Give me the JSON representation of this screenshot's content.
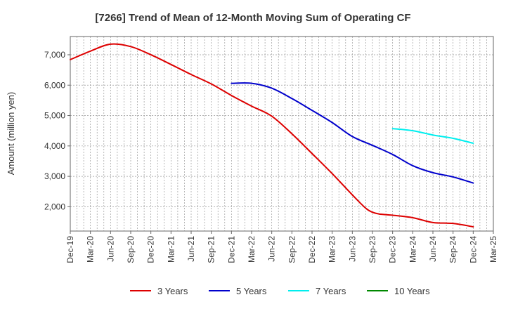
{
  "chart_data": {
    "type": "line",
    "title": "[7266]  Trend of Mean of 12-Month Moving Sum of Operating CF",
    "xlabel": "",
    "ylabel": "Amount (million yen)",
    "ylim": [
      1200,
      7600
    ],
    "yticks": [
      2000,
      3000,
      4000,
      5000,
      6000,
      7000
    ],
    "ytick_labels": [
      "2,000",
      "3,000",
      "4,000",
      "5,000",
      "6,000",
      "7,000"
    ],
    "x_tick_labels": [
      "Dec-19",
      "Mar-20",
      "Jun-20",
      "Sep-20",
      "Dec-20",
      "Mar-21",
      "Jun-21",
      "Sep-21",
      "Dec-21",
      "Mar-22",
      "Jun-22",
      "Sep-22",
      "Dec-22",
      "Mar-23",
      "Jun-23",
      "Sep-23",
      "Dec-23",
      "Mar-24",
      "Jun-24",
      "Sep-24",
      "Dec-24",
      "Mar-25"
    ],
    "x_unit": "months since Dec-19",
    "xlim": [
      0,
      63
    ],
    "grid": true,
    "legend_position": "bottom",
    "series": [
      {
        "name": "3 Years",
        "color": "#dd0000",
        "x": [
          0,
          3,
          6,
          9,
          12,
          15,
          18,
          21,
          24,
          27,
          30,
          33,
          36,
          39,
          42,
          44,
          45,
          46,
          48,
          51,
          54,
          57,
          60
        ],
        "values": [
          6840,
          7120,
          7350,
          7270,
          7000,
          6680,
          6350,
          6040,
          5660,
          5310,
          4980,
          4400,
          3750,
          3090,
          2390,
          1950,
          1820,
          1760,
          1720,
          1640,
          1480,
          1450,
          1340
        ]
      },
      {
        "name": "5 Years",
        "color": "#0000cc",
        "x": [
          24,
          27,
          30,
          33,
          36,
          39,
          42,
          45,
          48,
          51,
          54,
          57,
          60
        ],
        "values": [
          6060,
          6060,
          5900,
          5560,
          5170,
          4770,
          4310,
          4020,
          3720,
          3350,
          3120,
          2980,
          2780
        ]
      },
      {
        "name": "7 Years",
        "color": "#00eeee",
        "x": [
          48,
          51,
          54,
          57,
          60
        ],
        "values": [
          4570,
          4500,
          4360,
          4250,
          4090
        ]
      },
      {
        "name": "10 Years",
        "color": "#008800",
        "x": [],
        "values": []
      }
    ]
  }
}
